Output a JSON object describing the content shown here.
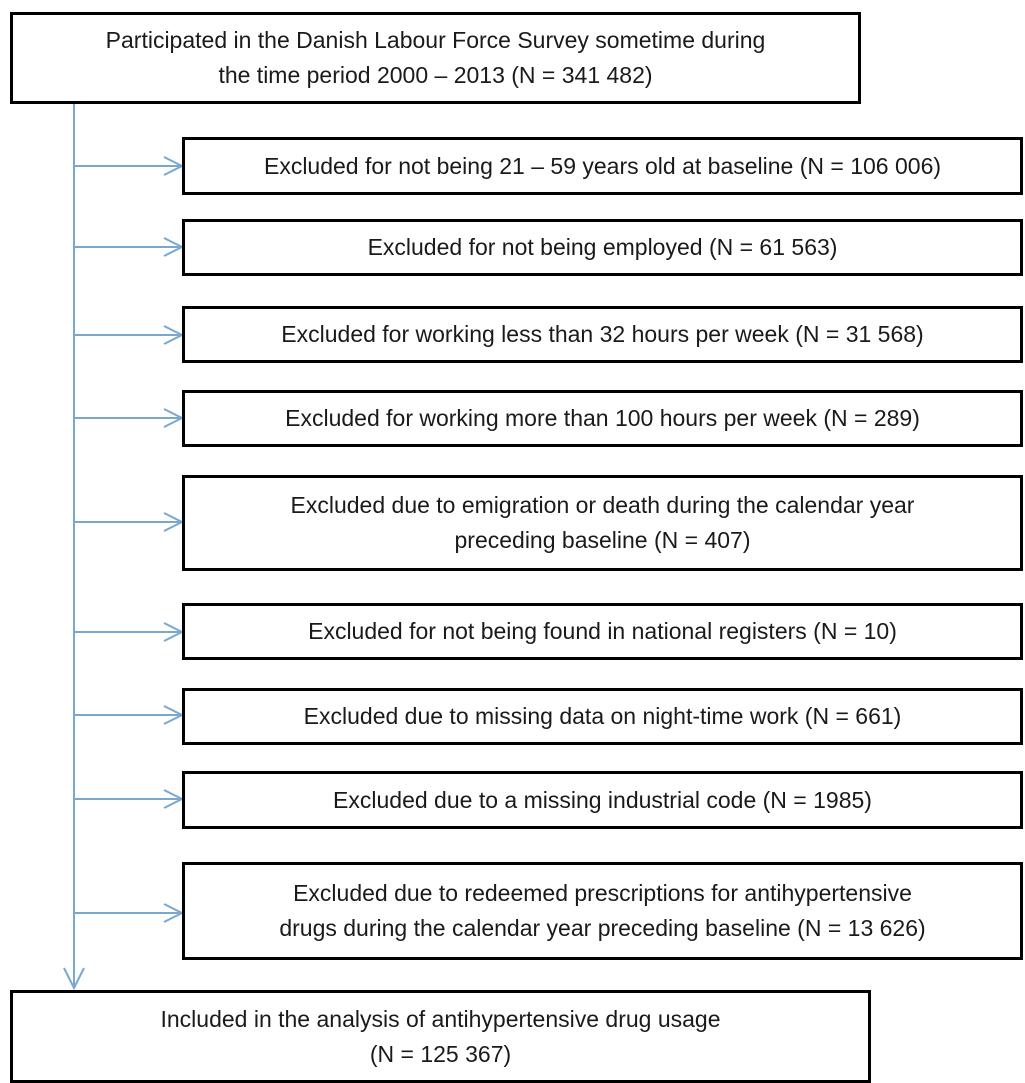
{
  "colors": {
    "connector": "#7aa7cf",
    "box_border": "#000000",
    "text": "#1a1a1a"
  },
  "source_box": {
    "line1": "Participated in the Danish Labour Force Survey sometime during",
    "line2": "the time period 2000 – 2013 (N = 341 482)"
  },
  "exclusions": [
    {
      "lines": [
        "Excluded for not being 21 – 59 years old at baseline (N = 106 006)"
      ]
    },
    {
      "lines": [
        "Excluded for not being employed (N = 61 563)"
      ]
    },
    {
      "lines": [
        "Excluded for working less than 32 hours per week (N = 31 568)"
      ]
    },
    {
      "lines": [
        "Excluded for working more than 100 hours per week (N = 289)"
      ]
    },
    {
      "lines": [
        "Excluded due to emigration or death during the calendar year",
        "preceding baseline (N = 407)"
      ]
    },
    {
      "lines": [
        "Excluded for not being found in national registers (N = 10)"
      ]
    },
    {
      "lines": [
        "Excluded due to missing data on night-time work (N = 661)"
      ]
    },
    {
      "lines": [
        "Excluded due to a missing industrial code (N = 1985)"
      ]
    },
    {
      "lines": [
        "Excluded due to redeemed prescriptions for antihypertensive",
        "drugs during the calendar year preceding baseline (N = 13 626)"
      ]
    }
  ],
  "result_box": {
    "line1": "Included in the analysis of antihypertensive drug usage",
    "line2": "(N = 125 367)"
  }
}
